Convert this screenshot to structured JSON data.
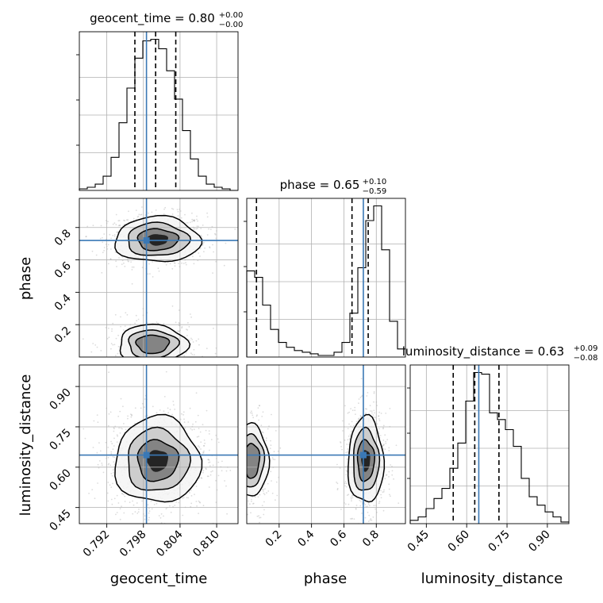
{
  "chart_data": {
    "type": "corner",
    "parameters": [
      "geocent_time",
      "phase",
      "luminosity_distance"
    ],
    "truths": {
      "geocent_time": 0.7985,
      "phase": 0.72,
      "luminosity_distance": 0.645
    },
    "titles": [
      {
        "param": "geocent_time",
        "text": "geocent_time = 0.80",
        "sup": "+0.00",
        "sub": "−0.00"
      },
      {
        "param": "phase",
        "text": "phase = 0.65",
        "sup": "+0.10",
        "sub": "−0.59"
      },
      {
        "param": "luminosity_distance",
        "text": "luminosity_distance = 0.63",
        "sup": "+0.09",
        "sub": "−0.08"
      }
    ],
    "ranges": {
      "geocent_time": [
        0.7875,
        0.8135
      ],
      "phase": [
        0.0,
        0.98
      ],
      "luminosity_distance": [
        0.39,
        0.98
      ]
    },
    "ticks": {
      "geocent_time": {
        "values": [
          0.792,
          0.798,
          0.804,
          0.81
        ],
        "labels": [
          "0.792",
          "0.798",
          "0.804",
          "0.810"
        ]
      },
      "phase": {
        "values": [
          0.2,
          0.4,
          0.6,
          0.8
        ],
        "labels": [
          "0.2",
          "0.4",
          "0.6",
          "0.8"
        ]
      },
      "luminosity_distance": {
        "values": [
          0.45,
          0.6,
          0.75,
          0.9
        ],
        "labels": [
          "0.45",
          "0.60",
          "0.75",
          "0.90"
        ]
      }
    },
    "quantiles": {
      "geocent_time": [
        0.7966,
        0.8,
        0.8033
      ],
      "phase": [
        0.06,
        0.65,
        0.75
      ],
      "luminosity_distance": [
        0.55,
        0.63,
        0.72
      ]
    },
    "histograms": {
      "geocent_time": {
        "edges_start": 0.7875,
        "bin_width": 0.0013,
        "counts": [
          1,
          2,
          4,
          9,
          21,
          43,
          65,
          84,
          95,
          96,
          90,
          76,
          58,
          38,
          20,
          9,
          4,
          2,
          1,
          0
        ]
      },
      "phase": {
        "edges_start": 0.0,
        "bin_width": 0.049,
        "counts": [
          53,
          49,
          32,
          17,
          9,
          6,
          4,
          3,
          2,
          1,
          1,
          3,
          9,
          27,
          55,
          84,
          93,
          66,
          22,
          5
        ]
      },
      "luminosity_distance": {
        "edges_start": 0.39,
        "bin_width": 0.0295,
        "counts": [
          2,
          4,
          9,
          15,
          21,
          33,
          48,
          73,
          90,
          89,
          66,
          62,
          56,
          46,
          27,
          16,
          11,
          7,
          4,
          1
        ]
      }
    },
    "grid": true
  },
  "labels": {
    "x0": "geocent_time",
    "x1": "phase",
    "x2": "luminosity_distance",
    "y1": "phase",
    "y2": "luminosity_distance"
  }
}
